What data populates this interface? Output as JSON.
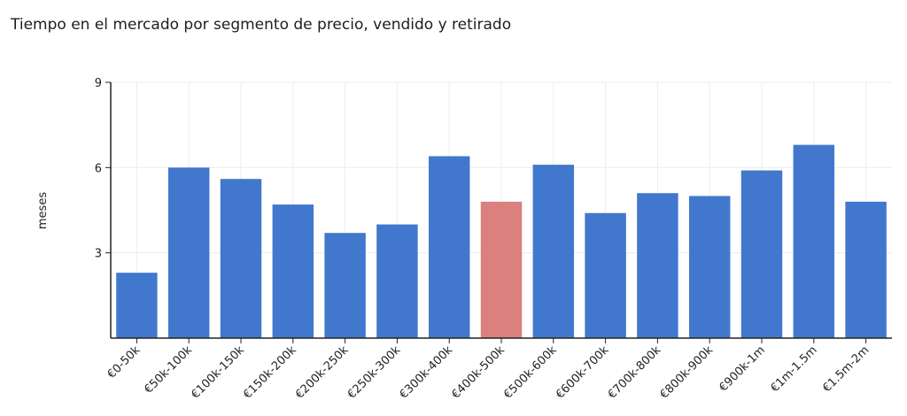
{
  "chart_data": {
    "type": "bar",
    "title": "Tiempo en el mercado por segmento de precio, vendido y retirado",
    "xlabel": "",
    "ylabel": "meses",
    "ylim": [
      0,
      9
    ],
    "yticks": [
      3,
      6,
      9
    ],
    "grid": true,
    "categories": [
      "€0-50k",
      "€50k-100k",
      "€100k-150k",
      "€150k-200k",
      "€200k-250k",
      "€250k-300k",
      "€300k-400k",
      "€400k-500k",
      "€500k-600k",
      "€600k-700k",
      "€700k-800k",
      "€800k-900k",
      "€900k-1m",
      "€1m-1.5m",
      "€1.5m-2m"
    ],
    "values": [
      2.3,
      6.0,
      5.6,
      4.7,
      3.7,
      4.0,
      6.4,
      4.8,
      6.1,
      4.4,
      5.1,
      5.0,
      5.9,
      6.8,
      4.8
    ],
    "highlight_index": 7,
    "colors": {
      "bar": "#4178cd",
      "highlight": "#db7f7f",
      "grid": "#ececec",
      "axis": "#222222"
    }
  }
}
